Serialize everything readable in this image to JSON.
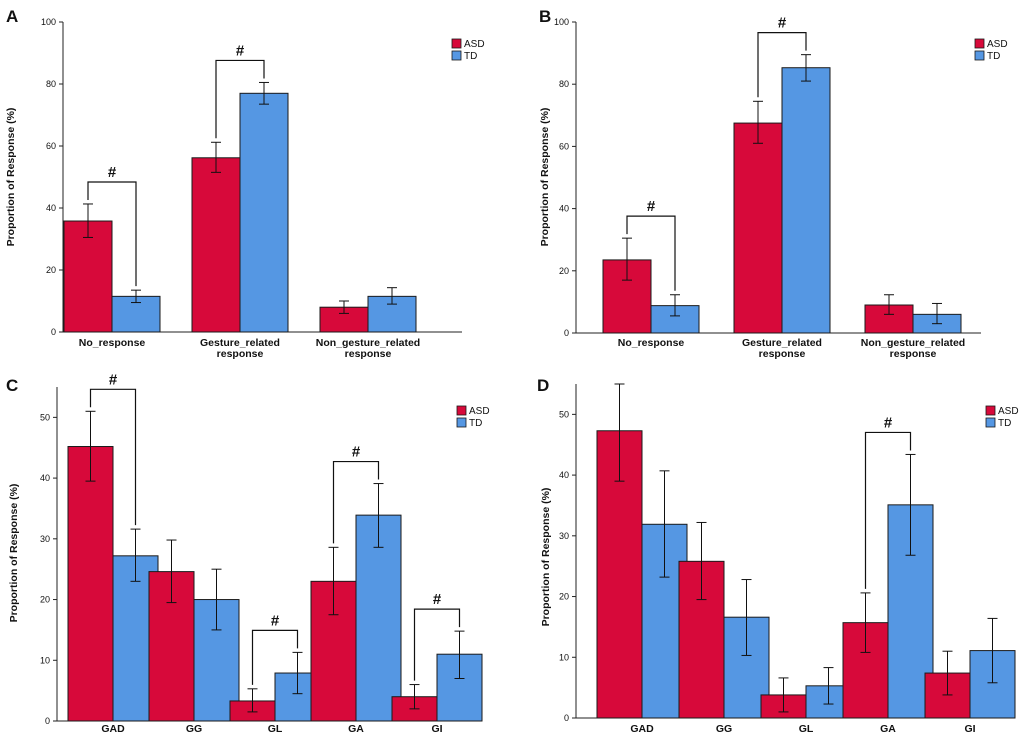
{
  "colors": {
    "ASD": "#d7093a",
    "TD": "#5597e3"
  },
  "chart_data": [
    {
      "type": "bar",
      "panel_label": "A",
      "ylabel": "Proportion of Response  (%)",
      "ylim": [
        0,
        100
      ],
      "yticks": [
        0,
        20,
        40,
        60,
        80,
        100
      ],
      "categories": [
        [
          "No_response"
        ],
        [
          "Gesture_related",
          "response"
        ],
        [
          "Non_gesture_related",
          "response"
        ]
      ],
      "series": [
        {
          "name": "ASD",
          "values": [
            35.8,
            56.2,
            8.0
          ],
          "err_low": [
            30.5,
            51.5,
            6.0
          ],
          "err_high": [
            41.3,
            61.2,
            10.0
          ]
        },
        {
          "name": "TD",
          "values": [
            11.5,
            77.0,
            11.5
          ],
          "err_low": [
            9.5,
            73.5,
            9.0
          ],
          "err_high": [
            13.5,
            80.5,
            14.3
          ]
        }
      ],
      "significance": [
        {
          "category": 0,
          "label": "#"
        },
        {
          "category": 1,
          "label": "#"
        }
      ],
      "legend": [
        "ASD",
        "TD"
      ],
      "legend_position": "top-right"
    },
    {
      "type": "bar",
      "panel_label": "B",
      "ylabel": "Proportion of Response  (%)",
      "ylim": [
        0,
        100
      ],
      "yticks": [
        0,
        20,
        40,
        60,
        80,
        100
      ],
      "categories": [
        [
          "No_response"
        ],
        [
          "Gesture_related",
          "response"
        ],
        [
          "Non_gesture_related",
          "response"
        ]
      ],
      "series": [
        {
          "name": "ASD",
          "values": [
            23.5,
            67.5,
            9.0
          ],
          "err_low": [
            17.0,
            61.0,
            6.0
          ],
          "err_high": [
            30.5,
            74.5,
            12.3
          ]
        },
        {
          "name": "TD",
          "values": [
            8.8,
            85.3,
            6.0
          ],
          "err_low": [
            5.5,
            81.0,
            3.0
          ],
          "err_high": [
            12.3,
            89.5,
            9.5
          ]
        }
      ],
      "significance": [
        {
          "category": 0,
          "label": "#"
        },
        {
          "category": 1,
          "label": "#"
        }
      ],
      "legend": [
        "ASD",
        "TD"
      ],
      "legend_position": "top-right"
    },
    {
      "type": "bar",
      "panel_label": "C",
      "ylabel": "Proportion of Response (%)",
      "ylim": [
        0,
        55
      ],
      "yticks": [
        0,
        10,
        20,
        30,
        40,
        50
      ],
      "categories": [
        [
          "GAD"
        ],
        [
          "GG"
        ],
        [
          "GL"
        ],
        [
          "GA"
        ],
        [
          "GI"
        ]
      ],
      "series": [
        {
          "name": "ASD",
          "values": [
            45.2,
            24.6,
            3.3,
            23.0,
            4.0
          ],
          "err_low": [
            39.5,
            19.5,
            1.5,
            17.5,
            2.0
          ],
          "err_high": [
            51.0,
            29.8,
            5.3,
            28.6,
            6.0
          ]
        },
        {
          "name": "TD",
          "values": [
            27.2,
            20.0,
            7.9,
            33.9,
            11.0
          ],
          "err_low": [
            23.0,
            15.0,
            4.5,
            28.6,
            7.0
          ],
          "err_high": [
            31.6,
            25.0,
            11.3,
            39.1,
            14.8
          ]
        }
      ],
      "significance": [
        {
          "category": 0,
          "label": "#"
        },
        {
          "category": 2,
          "label": "#"
        },
        {
          "category": 3,
          "label": "#"
        },
        {
          "category": 4,
          "label": "#"
        }
      ],
      "legend": [
        "ASD",
        "TD"
      ],
      "legend_position": "top-right"
    },
    {
      "type": "bar",
      "panel_label": "D",
      "ylabel": "Proportion of Response (%)",
      "ylim": [
        0,
        55
      ],
      "yticks": [
        0,
        10,
        20,
        30,
        40,
        50
      ],
      "categories": [
        [
          "GAD"
        ],
        [
          "GG"
        ],
        [
          "GL"
        ],
        [
          "GA"
        ],
        [
          "GI"
        ]
      ],
      "series": [
        {
          "name": "ASD",
          "values": [
            47.3,
            25.8,
            3.8,
            15.7,
            7.4
          ],
          "err_low": [
            39.0,
            19.5,
            1.0,
            10.8,
            3.8
          ],
          "err_high": [
            55.0,
            32.2,
            6.6,
            20.6,
            11.0
          ]
        },
        {
          "name": "TD",
          "values": [
            31.9,
            16.6,
            5.3,
            35.1,
            11.1
          ],
          "err_low": [
            23.2,
            10.3,
            2.3,
            26.8,
            5.8
          ],
          "err_high": [
            40.7,
            22.8,
            8.3,
            43.4,
            16.4
          ]
        }
      ],
      "significance": [
        {
          "category": 3,
          "label": "#"
        }
      ],
      "legend": [
        "ASD",
        "TD"
      ],
      "legend_position": "top-right"
    }
  ]
}
